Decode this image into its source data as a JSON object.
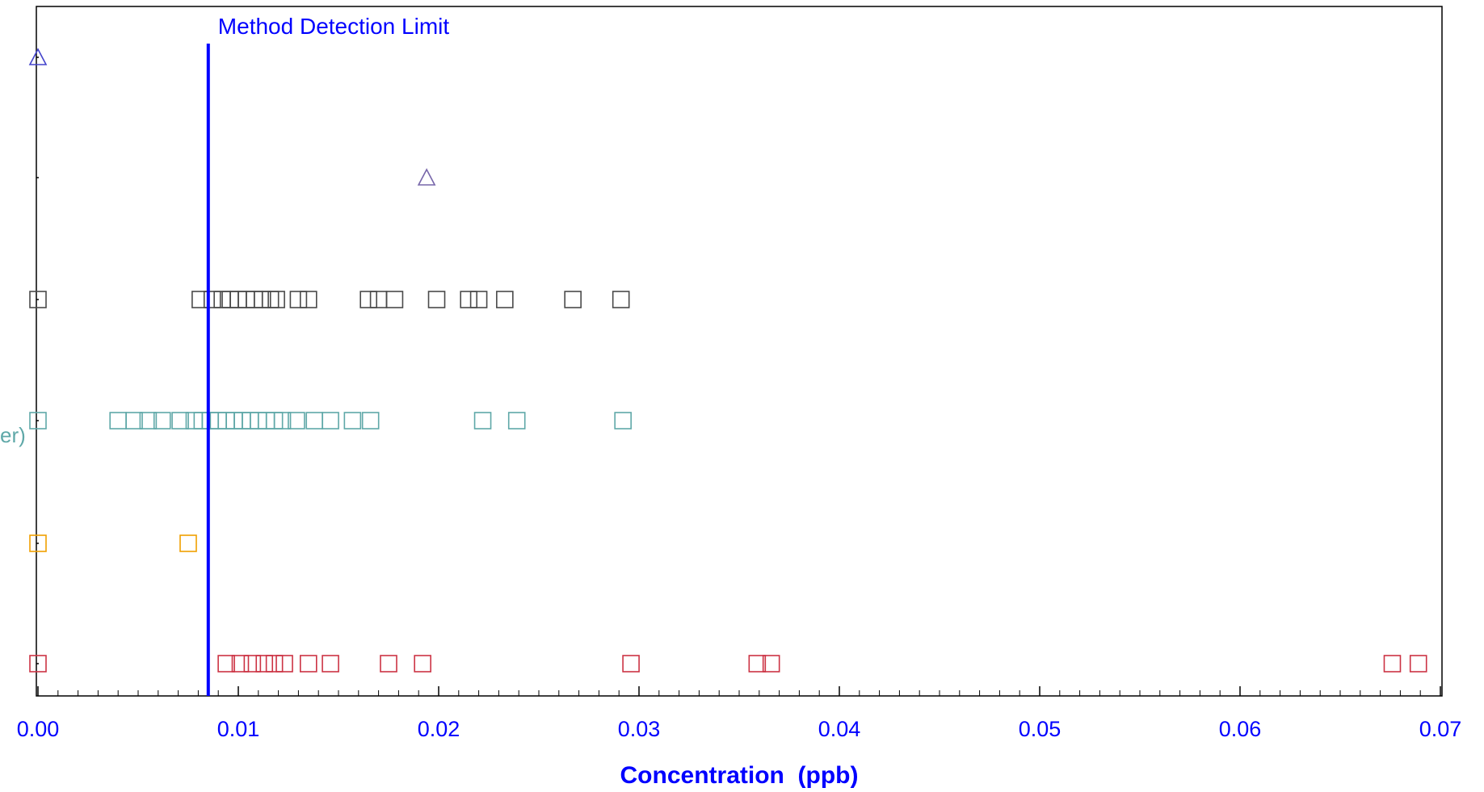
{
  "chart_data": {
    "type": "scatter",
    "title": "",
    "xlabel": "Concentration  (ppb)",
    "ylabel": "",
    "xlim": [
      0,
      0.07
    ],
    "x_ticks": [
      "0.00",
      "0.01",
      "0.02",
      "0.03",
      "0.04",
      "0.05",
      "0.06",
      "0.07"
    ],
    "grid": false,
    "reference_line": {
      "label": "Method Detection Limit",
      "x": 0.0085,
      "color": "#0000ff"
    },
    "partial_row_label": {
      "text": "er)",
      "color": "#5fa8a8"
    },
    "series": [
      {
        "marker": "triangle",
        "color": "#4444cc",
        "values": [
          0.0
        ]
      },
      {
        "marker": "triangle",
        "color": "#7766aa",
        "values": [
          0.0194
        ]
      },
      {
        "marker": "square",
        "color": "#4a4a4a",
        "values": [
          0.0,
          0.0081,
          0.0087,
          0.0092,
          0.0096,
          0.01,
          0.0104,
          0.0108,
          0.0112,
          0.0116,
          0.0119,
          0.013,
          0.0135,
          0.0165,
          0.017,
          0.0178,
          0.0199,
          0.0215,
          0.022,
          0.0233,
          0.0267,
          0.0291
        ]
      },
      {
        "marker": "square",
        "color": "#5fa8a8",
        "values": [
          0.0,
          0.004,
          0.0048,
          0.0055,
          0.0062,
          0.0071,
          0.0078,
          0.0082,
          0.0086,
          0.009,
          0.0094,
          0.0098,
          0.0102,
          0.0106,
          0.011,
          0.0114,
          0.0118,
          0.0122,
          0.0129,
          0.0138,
          0.0146,
          0.0157,
          0.0166,
          0.0222,
          0.0239,
          0.0292
        ]
      },
      {
        "marker": "square",
        "color": "#f0a000",
        "values": [
          0.0,
          0.0075
        ]
      },
      {
        "marker": "square",
        "color": "#cc3344",
        "values": [
          0.0,
          0.0094,
          0.0101,
          0.0107,
          0.0113,
          0.0118,
          0.0123,
          0.0135,
          0.0146,
          0.0175,
          0.0192,
          0.0296,
          0.0359,
          0.0366,
          0.0676,
          0.0689
        ]
      }
    ]
  }
}
